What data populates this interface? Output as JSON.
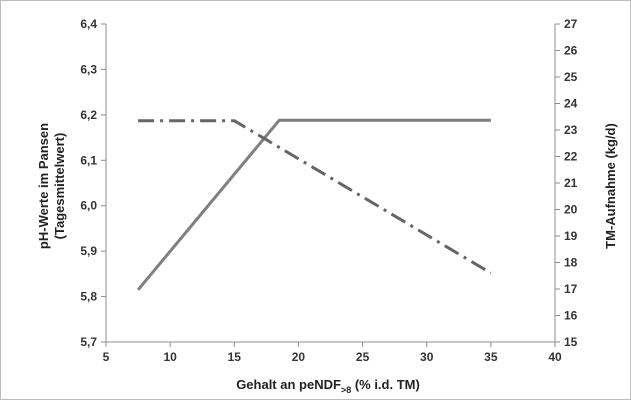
{
  "chart_data": {
    "type": "line",
    "title": "",
    "xlabel": "Gehalt an peNDF",
    "xlabel_sub": ">8",
    "xlabel_suffix": " (% i.d. TM)",
    "ylabel_left_line1": "pH-Werte im Pansen",
    "ylabel_left_line2": "(Tagesmittelwert)",
    "ylabel_right": "TM-Aufnahme (kg/d)",
    "xlim": [
      5,
      40
    ],
    "ylim_left": [
      5.7,
      6.4
    ],
    "ylim_right": [
      15,
      27
    ],
    "x_ticks": [
      5,
      10,
      15,
      20,
      25,
      30,
      35,
      40
    ],
    "x_tick_labels": [
      "5",
      "10",
      "15",
      "20",
      "25",
      "30",
      "35",
      "40"
    ],
    "y_left_ticks": [
      5.7,
      5.8,
      5.9,
      6.0,
      6.1,
      6.2,
      6.3,
      6.4
    ],
    "y_left_tick_labels": [
      "5,7",
      "5,8",
      "5,9",
      "6,0",
      "6,1",
      "6,2",
      "6,3",
      "6,4"
    ],
    "y_right_ticks": [
      15,
      16,
      17,
      18,
      19,
      20,
      21,
      22,
      23,
      24,
      25,
      26,
      27
    ],
    "y_right_tick_labels": [
      "15",
      "16",
      "17",
      "18",
      "19",
      "20",
      "21",
      "22",
      "23",
      "24",
      "25",
      "26",
      "27"
    ],
    "grid": false,
    "legend": "none",
    "series": [
      {
        "axis": "left",
        "style": "solid",
        "color": "#7f7f7f",
        "x": [
          7.5,
          18.5,
          35
        ],
        "y": [
          5.815,
          6.188,
          6.188
        ]
      },
      {
        "axis": "right",
        "style": "dashdot",
        "color": "#666666",
        "x": [
          7.5,
          15,
          35
        ],
        "y": [
          23.35,
          23.35,
          17.6
        ]
      }
    ]
  }
}
